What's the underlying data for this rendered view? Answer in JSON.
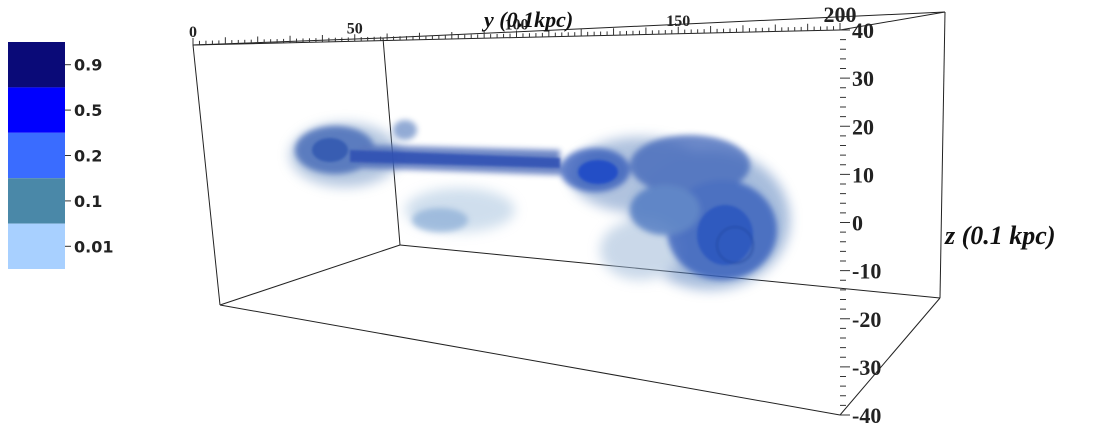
{
  "chart_data": {
    "type": "heatmap",
    "title": "",
    "y_axis": {
      "label": "y (0.1kpc)",
      "range": [
        0,
        200
      ],
      "ticks": [
        "0",
        "50",
        "100",
        "150",
        "200"
      ]
    },
    "z_axis": {
      "label": "z (0.1 kpc)",
      "range": [
        -40,
        40
      ],
      "ticks": [
        "40",
        "30",
        "20",
        "10",
        "0",
        "-10",
        "-20",
        "-30",
        "-40"
      ]
    },
    "legend": {
      "placement": "left",
      "levels": [
        {
          "label": "0.9",
          "color": "#0a0a78"
        },
        {
          "label": "0.5",
          "color": "#0000ff"
        },
        {
          "label": "0.2",
          "color": "#3a6cff"
        },
        {
          "label": "0.1",
          "color": "#4a88a8"
        },
        {
          "label": "0.01",
          "color": "#a8d0ff"
        }
      ]
    },
    "grid": false
  }
}
